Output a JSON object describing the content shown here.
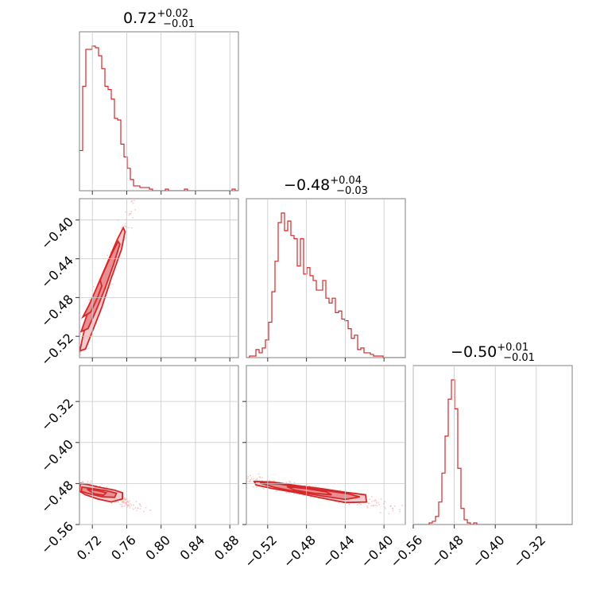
{
  "chart_data": {
    "type": "corner",
    "color": "#d62728",
    "parameters": [
      {
        "median": "0.72",
        "upper_err": "+0.02",
        "lower_err": "−0.01",
        "range": [
          0.705,
          0.89
        ],
        "ticks": [
          0.72,
          0.76,
          0.8,
          0.84,
          0.88
        ],
        "tick_labels": [
          "0.72",
          "0.76",
          "0.80",
          "0.84",
          "0.88"
        ]
      },
      {
        "median": "−0.48",
        "upper_err": "+0.04",
        "lower_err": "−0.03",
        "range": [
          -0.542,
          -0.378
        ],
        "ticks": [
          -0.52,
          -0.48,
          -0.44,
          -0.4
        ],
        "tick_labels": [
          "−0.52",
          "−0.48",
          "−0.44",
          "−0.40"
        ]
      },
      {
        "median": "−0.50",
        "upper_err": "+0.01",
        "lower_err": "−0.01",
        "range": [
          -0.56,
          -0.25
        ],
        "ticks": [
          -0.56,
          -0.48,
          -0.4,
          -0.32
        ],
        "tick_labels": [
          "−0.56",
          "−0.48",
          "−0.40",
          "−0.32"
        ]
      }
    ],
    "histograms": [
      {
        "param": 0,
        "edges_from": 0.705,
        "bin_width": 0.0037,
        "counts": [
          25,
          65,
          88,
          88,
          90,
          89,
          84,
          76,
          65,
          63,
          57,
          45,
          44,
          29,
          21,
          14,
          7,
          3,
          3,
          2,
          2,
          2,
          1,
          0,
          0,
          0,
          0,
          1,
          0,
          0,
          0,
          0,
          0,
          1,
          0,
          0,
          0,
          0,
          0,
          0,
          0,
          0,
          0,
          0,
          0,
          0,
          0,
          0,
          1,
          0
        ]
      },
      {
        "param": 1,
        "edges_from": -0.542,
        "bin_width": 0.00328,
        "counts": [
          0,
          1,
          1,
          5,
          3,
          6,
          11,
          22,
          41,
          60,
          84,
          90,
          79,
          85,
          76,
          74,
          57,
          74,
          52,
          56,
          51,
          48,
          42,
          42,
          48,
          37,
          34,
          37,
          28,
          29,
          24,
          23,
          18,
          12,
          14,
          5,
          6,
          3,
          3,
          2,
          1,
          1,
          1,
          0,
          0,
          0,
          0,
          0,
          0,
          0
        ]
      },
      {
        "param": 2,
        "edges_from": -0.56,
        "bin_width": 0.0062,
        "counts": [
          0,
          0,
          0,
          0,
          0,
          1,
          2,
          5,
          14,
          32,
          55,
          78,
          90,
          72,
          35,
          10,
          3,
          1,
          0,
          1,
          0,
          0,
          0,
          0,
          0,
          0,
          0,
          0,
          0,
          0,
          0,
          0,
          0,
          0,
          0,
          0,
          0,
          0,
          0,
          0,
          0,
          0,
          0,
          0,
          0,
          0,
          0,
          0,
          0,
          0
        ]
      }
    ],
    "pair_densities": [
      {
        "x": 0,
        "y": 1,
        "contours": [
          {
            "level": "outer",
            "points": [
              [
                0.7055,
                -0.535
              ],
              [
                0.709,
                -0.52
              ],
              [
                0.716,
                -0.495
              ],
              [
                0.725,
                -0.47
              ],
              [
                0.737,
                -0.445
              ],
              [
                0.749,
                -0.42
              ],
              [
                0.756,
                -0.408
              ],
              [
                0.758,
                -0.412
              ],
              [
                0.754,
                -0.43
              ],
              [
                0.742,
                -0.46
              ],
              [
                0.731,
                -0.49
              ],
              [
                0.72,
                -0.515
              ],
              [
                0.712,
                -0.533
              ]
            ]
          },
          {
            "level": "mid",
            "points": [
              [
                0.707,
                -0.515
              ],
              [
                0.713,
                -0.5
              ],
              [
                0.721,
                -0.48
              ],
              [
                0.731,
                -0.458
              ],
              [
                0.742,
                -0.436
              ],
              [
                0.75,
                -0.422
              ],
              [
                0.752,
                -0.425
              ],
              [
                0.745,
                -0.445
              ],
              [
                0.735,
                -0.47
              ],
              [
                0.725,
                -0.492
              ],
              [
                0.715,
                -0.512
              ]
            ]
          },
          {
            "level": "inner",
            "points": [
              [
                0.709,
                -0.5
              ],
              [
                0.716,
                -0.488
              ],
              [
                0.723,
                -0.474
              ],
              [
                0.729,
                -0.462
              ],
              [
                0.731,
                -0.468
              ],
              [
                0.726,
                -0.48
              ],
              [
                0.718,
                -0.495
              ]
            ]
          }
        ]
      },
      {
        "x": 0,
        "y": 2,
        "contours": [
          {
            "level": "outer",
            "points": [
              [
                0.706,
                -0.48
              ],
              [
                0.715,
                -0.482
              ],
              [
                0.73,
                -0.488
              ],
              [
                0.746,
                -0.493
              ],
              [
                0.755,
                -0.498
              ],
              [
                0.755,
                -0.51
              ],
              [
                0.742,
                -0.516
              ],
              [
                0.726,
                -0.51
              ],
              [
                0.712,
                -0.502
              ],
              [
                0.705,
                -0.495
              ]
            ]
          },
          {
            "level": "mid",
            "points": [
              [
                0.708,
                -0.487
              ],
              [
                0.72,
                -0.49
              ],
              [
                0.736,
                -0.494
              ],
              [
                0.748,
                -0.499
              ],
              [
                0.746,
                -0.507
              ],
              [
                0.732,
                -0.506
              ],
              [
                0.716,
                -0.5
              ],
              [
                0.707,
                -0.495
              ]
            ]
          },
          {
            "level": "inner",
            "points": [
              [
                0.714,
                -0.491
              ],
              [
                0.726,
                -0.494
              ],
              [
                0.736,
                -0.498
              ],
              [
                0.733,
                -0.503
              ],
              [
                0.722,
                -0.5
              ]
            ]
          }
        ]
      },
      {
        "x": 1,
        "y": 2,
        "contours": [
          {
            "level": "outer",
            "points": [
              [
                -0.534,
                -0.476
              ],
              [
                -0.515,
                -0.477
              ],
              [
                -0.49,
                -0.484
              ],
              [
                -0.465,
                -0.49
              ],
              [
                -0.44,
                -0.497
              ],
              [
                -0.419,
                -0.502
              ],
              [
                -0.418,
                -0.516
              ],
              [
                -0.44,
                -0.517
              ],
              [
                -0.465,
                -0.508
              ],
              [
                -0.49,
                -0.498
              ],
              [
                -0.515,
                -0.49
              ],
              [
                -0.532,
                -0.483
              ]
            ]
          },
          {
            "level": "mid",
            "points": [
              [
                -0.528,
                -0.479
              ],
              [
                -0.508,
                -0.481
              ],
              [
                -0.485,
                -0.488
              ],
              [
                -0.46,
                -0.494
              ],
              [
                -0.437,
                -0.5
              ],
              [
                -0.425,
                -0.506
              ],
              [
                -0.44,
                -0.511
              ],
              [
                -0.465,
                -0.504
              ],
              [
                -0.49,
                -0.496
              ],
              [
                -0.512,
                -0.488
              ]
            ]
          },
          {
            "level": "inner",
            "points": [
              [
                -0.5,
                -0.486
              ],
              [
                -0.48,
                -0.49
              ],
              [
                -0.46,
                -0.496
              ],
              [
                -0.454,
                -0.502
              ],
              [
                -0.472,
                -0.499
              ],
              [
                -0.492,
                -0.493
              ]
            ]
          }
        ]
      }
    ]
  }
}
